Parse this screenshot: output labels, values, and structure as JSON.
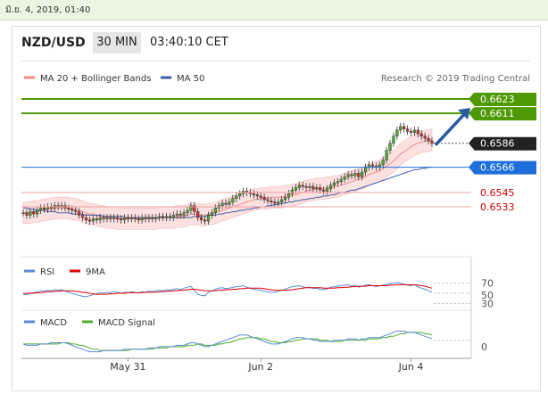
{
  "header": {
    "datetime": "มิ.ย. 4, 2019, 01:40",
    "pair": "NZD/USD",
    "timeframe": "30 MIN",
    "time": "03:40:10 CET"
  },
  "chart_data": {
    "type": "line",
    "credit": "Research © 2019 Trading Central",
    "legend": [
      {
        "name": "MA 20 + Bollinger Bands",
        "color": "#f08a8a"
      },
      {
        "name": "MA 50",
        "color": "#3e5fa8"
      }
    ],
    "x_labels": [
      {
        "label": "May 31",
        "index": 30
      },
      {
        "label": "Jun 2",
        "index": 68
      },
      {
        "label": "Jun 4",
        "index": 111
      }
    ],
    "ylim": [
      0.6506,
      0.6628
    ],
    "price": [
      0.6528,
      0.6526,
      0.6529,
      0.6527,
      0.653,
      0.6532,
      0.6531,
      0.6533,
      0.6532,
      0.6534,
      0.6533,
      0.6534,
      0.6532,
      0.6531,
      0.653,
      0.6529,
      0.6526,
      0.6524,
      0.6522,
      0.6521,
      0.6523,
      0.6522,
      0.6524,
      0.6523,
      0.6524,
      0.6523,
      0.6524,
      0.6523,
      0.6522,
      0.6524,
      0.6523,
      0.6524,
      0.6523,
      0.6522,
      0.6524,
      0.6523,
      0.6524,
      0.6523,
      0.6524,
      0.6525,
      0.6524,
      0.6525,
      0.6524,
      0.6526,
      0.6527,
      0.6526,
      0.6528,
      0.653,
      0.6534,
      0.6529,
      0.6524,
      0.6522,
      0.6521,
      0.6526,
      0.6528,
      0.6532,
      0.6534,
      0.6536,
      0.6535,
      0.6537,
      0.654,
      0.6542,
      0.6544,
      0.6546,
      0.6545,
      0.6544,
      0.6543,
      0.6542,
      0.6541,
      0.6539,
      0.6538,
      0.6537,
      0.6536,
      0.6537,
      0.6539,
      0.6541,
      0.6544,
      0.6547,
      0.6549,
      0.6551,
      0.655,
      0.6549,
      0.655,
      0.6548,
      0.6549,
      0.6547,
      0.6546,
      0.6548,
      0.6551,
      0.6553,
      0.6554,
      0.6556,
      0.6558,
      0.656,
      0.6559,
      0.6561,
      0.6558,
      0.6562,
      0.6566,
      0.6568,
      0.6567,
      0.6566,
      0.6568,
      0.6572,
      0.658,
      0.6586,
      0.6592,
      0.6597,
      0.66,
      0.6598,
      0.6596,
      0.6595,
      0.6597,
      0.6594,
      0.6592,
      0.659,
      0.6588,
      0.6586
    ],
    "ma20": [
      0.6528,
      0.6528,
      0.6528,
      0.6529,
      0.6529,
      0.653,
      0.653,
      0.6531,
      0.6531,
      0.6532,
      0.6532,
      0.6532,
      0.6532,
      0.6532,
      0.6531,
      0.6531,
      0.653,
      0.6529,
      0.6528,
      0.6527,
      0.6527,
      0.6526,
      0.6525,
      0.6525,
      0.6524,
      0.6524,
      0.6524,
      0.6523,
      0.6523,
      0.6523,
      0.6523,
      0.6523,
      0.6523,
      0.6523,
      0.6523,
      0.6523,
      0.6523,
      0.6523,
      0.6523,
      0.6524,
      0.6524,
      0.6524,
      0.6524,
      0.6524,
      0.6525,
      0.6525,
      0.6525,
      0.6526,
      0.6527,
      0.6527,
      0.6527,
      0.6526,
      0.6526,
      0.6527,
      0.6527,
      0.6528,
      0.6529,
      0.653,
      0.6531,
      0.6532,
      0.6533,
      0.6534,
      0.6535,
      0.6536,
      0.6537,
      0.6538,
      0.6539,
      0.6539,
      0.654,
      0.654,
      0.654,
      0.6541,
      0.6541,
      0.6541,
      0.6541,
      0.6542,
      0.6542,
      0.6543,
      0.6543,
      0.6544,
      0.6545,
      0.6546,
      0.6547,
      0.6547,
      0.6548,
      0.6548,
      0.6548,
      0.6549,
      0.6549,
      0.655,
      0.655,
      0.6551,
      0.6552,
      0.6553,
      0.6554,
      0.6555,
      0.6556,
      0.6557,
      0.6558,
      0.656,
      0.6561,
      0.6562,
      0.6563,
      0.6565,
      0.6567,
      0.6569,
      0.6571,
      0.6574,
      0.6577,
      0.6579,
      0.6581,
      0.6583,
      0.6585,
      0.6586,
      0.6587,
      0.6588,
      0.6588,
      0.6589
    ],
    "ma50": [
      0.6532,
      0.6532,
      0.6531,
      0.6531,
      0.653,
      0.653,
      0.653,
      0.6529,
      0.6529,
      0.6529,
      0.6528,
      0.6528,
      0.6528,
      0.6528,
      0.6527,
      0.6527,
      0.6527,
      0.6527,
      0.6526,
      0.6526,
      0.6526,
      0.6526,
      0.6526,
      0.6525,
      0.6525,
      0.6525,
      0.6525,
      0.6525,
      0.6525,
      0.6524,
      0.6524,
      0.6524,
      0.6524,
      0.6524,
      0.6524,
      0.6524,
      0.6524,
      0.6524,
      0.6524,
      0.6524,
      0.6524,
      0.6524,
      0.6524,
      0.6524,
      0.6524,
      0.6524,
      0.6524,
      0.6524,
      0.6524,
      0.6525,
      0.6525,
      0.6525,
      0.6525,
      0.6526,
      0.6526,
      0.6526,
      0.6527,
      0.6527,
      0.6528,
      0.6528,
      0.6529,
      0.6529,
      0.653,
      0.653,
      0.6531,
      0.6531,
      0.6532,
      0.6532,
      0.6533,
      0.6533,
      0.6534,
      0.6534,
      0.6535,
      0.6535,
      0.6536,
      0.6536,
      0.6537,
      0.6537,
      0.6538,
      0.6538,
      0.6539,
      0.6539,
      0.654,
      0.654,
      0.6541,
      0.6541,
      0.6542,
      0.6542,
      0.6543,
      0.6543,
      0.6544,
      0.6545,
      0.6545,
      0.6546,
      0.6547,
      0.6547,
      0.6548,
      0.6549,
      0.655,
      0.6551,
      0.6552,
      0.6553,
      0.6554,
      0.6555,
      0.6556,
      0.6557,
      0.6558,
      0.6559,
      0.656,
      0.6561,
      0.6562,
      0.6563,
      0.6564,
      0.6564,
      0.6565,
      0.6565,
      0.6566,
      0.6566
    ],
    "band_width": 0.0009,
    "levels": [
      {
        "value": 0.6623,
        "label": "0.6623",
        "color": "#4e9a06",
        "style": "solid",
        "box": "#4e9a06"
      },
      {
        "value": 0.6611,
        "label": "0.6611",
        "color": "#4e9a06",
        "style": "solid",
        "box": "#4e9a06"
      },
      {
        "value": 0.6586,
        "label": "0.6586",
        "color": "#555555",
        "style": "dotted",
        "box": "#222222"
      },
      {
        "value": 0.6566,
        "label": "0.6566",
        "color": "#1e6fd9",
        "style": "solid",
        "box": "#1e6fd9"
      },
      {
        "value": 0.6545,
        "label": "0.6545",
        "color": "#f0a0a0",
        "style": "solid",
        "box": null,
        "text_color": "#d00000"
      },
      {
        "value": 0.6533,
        "label": "0.6533",
        "color": "#f0a0a0",
        "style": "solid",
        "box": null,
        "text_color": "#d00000"
      }
    ],
    "projection": {
      "from_index": 117,
      "from_value": 0.6586,
      "to_value": 0.6611
    },
    "rsi": {
      "legend": [
        {
          "name": "RSI",
          "color": "#5b8ad8"
        },
        {
          "name": "9MA",
          "color": "#e00000"
        }
      ],
      "levels": [
        "70",
        "50",
        "30"
      ],
      "ylim": [
        20,
        80
      ],
      "rsi": [
        48,
        47,
        50,
        51,
        53,
        55,
        54,
        56,
        55,
        57,
        56,
        57,
        54,
        52,
        50,
        48,
        46,
        44,
        43,
        45,
        47,
        49,
        51,
        50,
        52,
        51,
        53,
        52,
        50,
        52,
        51,
        53,
        52,
        50,
        53,
        52,
        54,
        53,
        55,
        56,
        55,
        57,
        56,
        58,
        59,
        57,
        60,
        62,
        64,
        55,
        48,
        46,
        45,
        52,
        55,
        58,
        60,
        61,
        59,
        60,
        62,
        63,
        64,
        65,
        62,
        60,
        58,
        57,
        56,
        54,
        53,
        52,
        52,
        54,
        56,
        58,
        61,
        63,
        64,
        65,
        63,
        61,
        62,
        59,
        60,
        58,
        57,
        59,
        62,
        63,
        64,
        65,
        66,
        67,
        64,
        66,
        62,
        64,
        66,
        67,
        65,
        63,
        65,
        66,
        68,
        69,
        70,
        71,
        70,
        68,
        66,
        65,
        67,
        63,
        60,
        58,
        55,
        52
      ],
      "ma9": [
        50,
        50,
        50,
        50,
        51,
        51,
        52,
        53,
        53,
        54,
        54,
        55,
        55,
        55,
        55,
        54,
        53,
        52,
        51,
        50,
        49,
        48,
        48,
        48,
        48,
        49,
        49,
        50,
        50,
        50,
        51,
        51,
        51,
        51,
        51,
        52,
        52,
        52,
        52,
        53,
        53,
        54,
        54,
        55,
        55,
        56,
        56,
        57,
        58,
        58,
        57,
        56,
        55,
        55,
        55,
        55,
        56,
        56,
        57,
        57,
        58,
        58,
        59,
        59,
        60,
        60,
        60,
        60,
        60,
        59,
        58,
        57,
        56,
        56,
        56,
        56,
        56,
        57,
        58,
        59,
        60,
        61,
        61,
        61,
        61,
        61,
        60,
        60,
        60,
        60,
        61,
        61,
        62,
        62,
        63,
        63,
        64,
        64,
        64,
        65,
        65,
        65,
        65,
        65,
        65,
        66,
        66,
        67,
        67,
        67,
        67,
        67,
        67,
        66,
        65,
        64,
        62,
        60
      ]
    },
    "macd": {
      "legend": [
        {
          "name": "MACD",
          "color": "#5b8ad8"
        },
        {
          "name": "MACD Signal",
          "color": "#4cae2c"
        }
      ],
      "zero_label": "0",
      "ylim": [
        -0.0006,
        0.0014
      ],
      "macd": [
        0.0003,
        0.0002,
        0.0002,
        0.0002,
        0.0002,
        0.0003,
        0.0003,
        0.0003,
        0.0004,
        0.0004,
        0.0004,
        0.0004,
        0.0004,
        0.0003,
        0.0002,
        0.0001,
        0.0,
        -0.0001,
        -0.0002,
        -0.0003,
        -0.0003,
        -0.0003,
        -0.0003,
        -0.0002,
        -0.0002,
        -0.0002,
        -0.0002,
        -0.0002,
        -0.0002,
        -0.0001,
        -0.0001,
        -0.0001,
        -0.0001,
        -0.0001,
        -0.0001,
        -0.0001,
        0.0,
        0.0,
        0.0,
        0.0001,
        0.0001,
        0.0001,
        0.0001,
        0.0001,
        0.0002,
        0.0002,
        0.0002,
        0.0003,
        0.0004,
        0.0004,
        0.0003,
        0.0002,
        0.0001,
        0.0001,
        0.0002,
        0.0003,
        0.0004,
        0.0005,
        0.0006,
        0.0007,
        0.0008,
        0.0009,
        0.001,
        0.001,
        0.001,
        0.0009,
        0.0008,
        0.0007,
        0.0006,
        0.0005,
        0.0004,
        0.0003,
        0.0003,
        0.0003,
        0.0004,
        0.0005,
        0.0006,
        0.0007,
        0.0008,
        0.0008,
        0.0008,
        0.0007,
        0.0007,
        0.0006,
        0.0006,
        0.0005,
        0.0005,
        0.0005,
        0.0005,
        0.0006,
        0.0006,
        0.0006,
        0.0006,
        0.0007,
        0.0007,
        0.0007,
        0.0006,
        0.0007,
        0.0007,
        0.0008,
        0.0008,
        0.0008,
        0.0008,
        0.0009,
        0.001,
        0.0011,
        0.0012,
        0.0013,
        0.0013,
        0.0013,
        0.0012,
        0.0012,
        0.0012,
        0.0011,
        0.001,
        0.0009,
        0.0008,
        0.0007
      ],
      "signal": [
        0.0003,
        0.0003,
        0.0003,
        0.0003,
        0.0003,
        0.0003,
        0.0003,
        0.0003,
        0.0003,
        0.0003,
        0.0003,
        0.0004,
        0.0004,
        0.0004,
        0.0003,
        0.0003,
        0.0002,
        0.0002,
        0.0001,
        0.0,
        -0.0001,
        -0.0001,
        -0.0002,
        -0.0002,
        -0.0002,
        -0.0002,
        -0.0002,
        -0.0002,
        -0.0002,
        -0.0002,
        -0.0002,
        -0.0001,
        -0.0001,
        -0.0001,
        -0.0001,
        -0.0001,
        -0.0001,
        -0.0001,
        0.0,
        0.0,
        0.0,
        0.0,
        0.0001,
        0.0001,
        0.0001,
        0.0001,
        0.0001,
        0.0002,
        0.0002,
        0.0002,
        0.0003,
        0.0003,
        0.0002,
        0.0002,
        0.0002,
        0.0002,
        0.0003,
        0.0003,
        0.0004,
        0.0004,
        0.0005,
        0.0006,
        0.0007,
        0.0007,
        0.0008,
        0.0008,
        0.0008,
        0.0008,
        0.0007,
        0.0007,
        0.0006,
        0.0005,
        0.0005,
        0.0004,
        0.0004,
        0.0004,
        0.0005,
        0.0005,
        0.0006,
        0.0006,
        0.0007,
        0.0007,
        0.0007,
        0.0007,
        0.0007,
        0.0006,
        0.0006,
        0.0006,
        0.0005,
        0.0005,
        0.0005,
        0.0005,
        0.0006,
        0.0006,
        0.0006,
        0.0006,
        0.0006,
        0.0006,
        0.0006,
        0.0007,
        0.0007,
        0.0007,
        0.0007,
        0.0008,
        0.0008,
        0.0009,
        0.0009,
        0.001,
        0.0011,
        0.0011,
        0.0012,
        0.0012,
        0.0012,
        0.0012,
        0.0012,
        0.0011,
        0.0011,
        0.001
      ]
    }
  }
}
